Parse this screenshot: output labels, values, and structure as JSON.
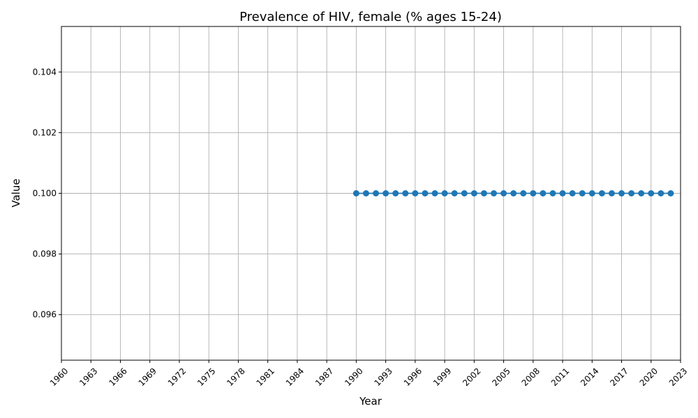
{
  "chart_data": {
    "type": "line",
    "title": "Prevalence of HIV, female (% ages 15-24)",
    "xlabel": "Year",
    "ylabel": "Value",
    "xlim": [
      1960,
      2023
    ],
    "ylim": [
      0.0945,
      0.1055
    ],
    "x_ticks": [
      1960,
      1963,
      1966,
      1969,
      1972,
      1975,
      1978,
      1981,
      1984,
      1987,
      1990,
      1993,
      1996,
      1999,
      2002,
      2005,
      2008,
      2011,
      2014,
      2017,
      2020,
      2023
    ],
    "y_ticks": [
      "0.096",
      "0.098",
      "0.100",
      "0.102",
      "0.104"
    ],
    "grid": true,
    "series": [
      {
        "color": "#1f77b4",
        "marker": "circle",
        "x": [
          1990,
          1991,
          1992,
          1993,
          1994,
          1995,
          1996,
          1997,
          1998,
          1999,
          2000,
          2001,
          2002,
          2003,
          2004,
          2005,
          2006,
          2007,
          2008,
          2009,
          2010,
          2011,
          2012,
          2013,
          2014,
          2015,
          2016,
          2017,
          2018,
          2019,
          2020,
          2021,
          2022
        ],
        "values": [
          0.1,
          0.1,
          0.1,
          0.1,
          0.1,
          0.1,
          0.1,
          0.1,
          0.1,
          0.1,
          0.1,
          0.1,
          0.1,
          0.1,
          0.1,
          0.1,
          0.1,
          0.1,
          0.1,
          0.1,
          0.1,
          0.1,
          0.1,
          0.1,
          0.1,
          0.1,
          0.1,
          0.1,
          0.1,
          0.1,
          0.1,
          0.1,
          0.1
        ]
      }
    ]
  }
}
